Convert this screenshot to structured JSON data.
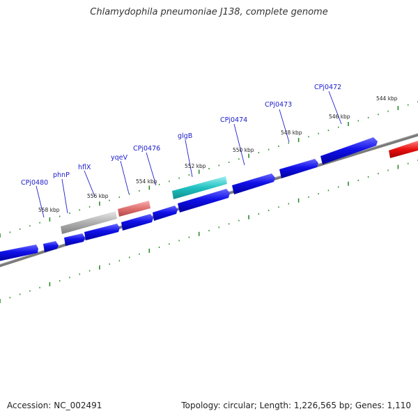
{
  "title": "Chlamydophila pneumoniae J138, complete genome",
  "footer": {
    "accession": "Accession: NC_002491",
    "summary": "Topology: circular; Length: 1,226,565 bp; Genes: 1,110"
  },
  "colors": {
    "gene_default": "#1010e8",
    "gene_grey": "#a8a8a8",
    "gene_pink": "#e07070",
    "gene_cyan": "#20c0c0",
    "gene_red": "#e81010",
    "backbone": "#808080",
    "tick": "#208020",
    "label_line": "#2020cc"
  },
  "gene_labels": [
    "CPj0480",
    "phnP",
    "hflX",
    "yqeV",
    "CPj0476",
    "glgB",
    "CPj0474",
    "CPj0473",
    "CPj0472"
  ],
  "kbp_labels": [
    "558 kbp",
    "556 kbp",
    "554 kbp",
    "552 kbp",
    "550 kbp",
    "548 kbp",
    "546 kbp",
    "544 kbp"
  ]
}
